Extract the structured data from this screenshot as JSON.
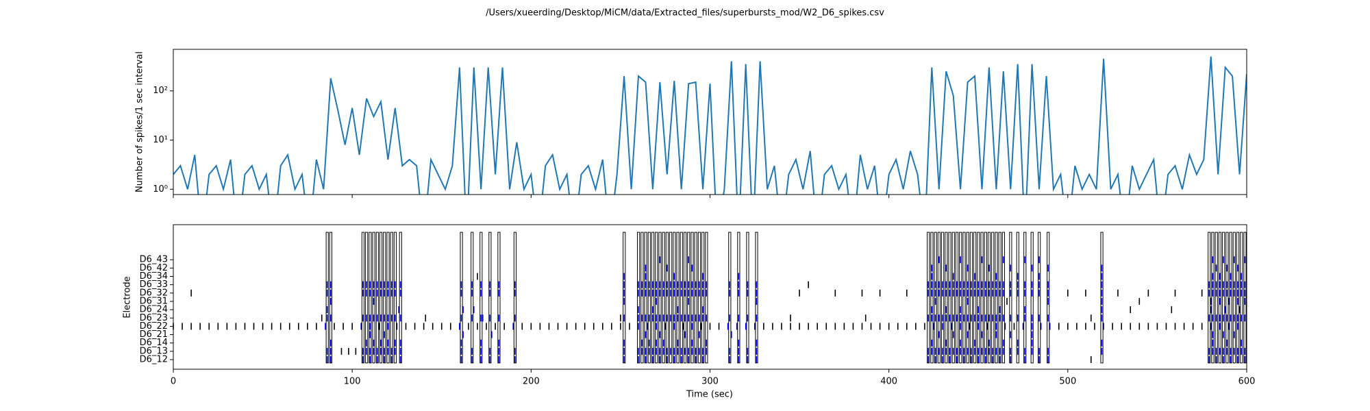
{
  "chart_data": [
    {
      "type": "line",
      "title": "/Users/xueerding/Desktop/MiCM/data/Extracted_files/superbursts_mod/W2_D6_spikes.csv",
      "y_label": "Number of spikes/1 sec interval",
      "log_y": true,
      "xlim": [
        0,
        600
      ],
      "ylim": [
        0.78,
        700
      ],
      "yticks": [
        {
          "value": 1,
          "label": "10⁰"
        },
        {
          "value": 10,
          "label": "10¹"
        },
        {
          "value": 100,
          "label": "10²"
        }
      ],
      "x": [
        0,
        4,
        8,
        12,
        16,
        20,
        24,
        28,
        32,
        36,
        40,
        44,
        48,
        52,
        56,
        60,
        64,
        68,
        72,
        76,
        80,
        84,
        88,
        92,
        96,
        100,
        104,
        108,
        112,
        116,
        120,
        124,
        128,
        132,
        136,
        140,
        144,
        148,
        152,
        156,
        160,
        164,
        168,
        172,
        176,
        180,
        184,
        188,
        192,
        196,
        200,
        204,
        208,
        212,
        216,
        220,
        224,
        228,
        232,
        236,
        240,
        244,
        248,
        252,
        256,
        260,
        264,
        268,
        272,
        276,
        280,
        284,
        288,
        292,
        296,
        300,
        304,
        308,
        312,
        316,
        320,
        324,
        328,
        332,
        336,
        340,
        344,
        348,
        352,
        356,
        360,
        364,
        368,
        372,
        376,
        380,
        384,
        388,
        392,
        396,
        400,
        404,
        408,
        412,
        416,
        420,
        424,
        428,
        432,
        436,
        440,
        444,
        448,
        452,
        456,
        460,
        464,
        468,
        472,
        476,
        480,
        484,
        488,
        492,
        496,
        500,
        504,
        508,
        512,
        516,
        520,
        524,
        528,
        532,
        536,
        540,
        544,
        548,
        552,
        556,
        560,
        564,
        568,
        572,
        576,
        580,
        584,
        588,
        592,
        596,
        600
      ],
      "series": [
        {
          "color": "#1f77b4",
          "values": [
            2,
            3,
            1,
            5,
            0,
            2,
            3,
            1,
            4,
            0,
            2,
            3,
            1,
            2,
            0,
            3,
            5,
            1,
            2,
            0,
            4,
            1,
            180,
            40,
            8,
            45,
            5,
            70,
            30,
            60,
            4,
            45,
            3,
            4,
            3,
            0,
            4,
            2,
            1,
            3,
            300,
            0,
            300,
            1,
            300,
            2,
            300,
            1,
            9,
            1,
            2,
            0,
            3,
            5,
            1,
            2,
            0,
            2,
            3,
            1,
            4,
            0,
            2,
            200,
            1,
            200,
            150,
            1,
            150,
            2,
            160,
            1,
            140,
            150,
            1,
            140,
            0,
            1,
            400,
            0,
            350,
            0,
            400,
            1,
            3,
            0,
            2,
            4,
            1,
            6,
            0,
            2,
            3,
            1,
            2,
            0,
            5,
            1,
            3,
            0,
            2,
            4,
            1,
            6,
            2,
            0,
            300,
            1,
            250,
            80,
            1,
            150,
            200,
            1,
            300,
            1,
            250,
            1,
            350,
            0,
            350,
            1,
            200,
            1,
            2,
            0,
            3,
            1,
            2,
            1,
            450,
            1,
            2,
            0,
            3,
            1,
            2,
            4,
            0,
            2,
            3,
            1,
            5,
            2,
            4,
            500,
            2,
            300,
            200,
            2,
            220
          ]
        }
      ]
    },
    {
      "type": "raster",
      "x_label": "Time (sec)",
      "y_label": "Electrode",
      "xlim": [
        0,
        600
      ],
      "xticks": [
        0,
        100,
        200,
        300,
        400,
        500,
        600
      ],
      "color": "#000000",
      "burst_color": "#0000ff",
      "categories": [
        "D6_12",
        "D6_13",
        "D6_14",
        "D6_21",
        "D6_22",
        "D6_23",
        "D6_24",
        "D6_31",
        "D6_32",
        "D6_33",
        "D6_34",
        "D6_42",
        "D6_43"
      ],
      "bursts": [
        86,
        88,
        106,
        108,
        110,
        112,
        114,
        116,
        118,
        120,
        122,
        124,
        127,
        161,
        167,
        172,
        177,
        182,
        191,
        252,
        260,
        262,
        264,
        266,
        268,
        270,
        272,
        274,
        276,
        278,
        280,
        282,
        284,
        286,
        288,
        290,
        292,
        294,
        296,
        298,
        311,
        316,
        321,
        326,
        422,
        424,
        426,
        428,
        430,
        432,
        434,
        436,
        438,
        440,
        442,
        444,
        446,
        448,
        450,
        452,
        454,
        456,
        458,
        460,
        462,
        464,
        468,
        472,
        476,
        480,
        484,
        489,
        519,
        579,
        581,
        583,
        585,
        587,
        589,
        591,
        593,
        595,
        597,
        599
      ],
      "spikes": [
        [
          86,
          88,
          106,
          110,
          114,
          118,
          122,
          127,
          161,
          167,
          172,
          177,
          182,
          191,
          252,
          260,
          264,
          268,
          272,
          276,
          280,
          284,
          288,
          292,
          296,
          311,
          316,
          321,
          326,
          422,
          426,
          430,
          434,
          438,
          442,
          446,
          450,
          454,
          458,
          462,
          468,
          476,
          484,
          489,
          513,
          579,
          583,
          587,
          591,
          595,
          599
        ],
        [
          86,
          88,
          106,
          108,
          110,
          112,
          114,
          116,
          118,
          120,
          122,
          124,
          127,
          161,
          167,
          172,
          177,
          182,
          191,
          252,
          260,
          262,
          264,
          266,
          268,
          270,
          272,
          274,
          276,
          278,
          280,
          282,
          284,
          286,
          288,
          290,
          292,
          294,
          296,
          298,
          311,
          316,
          321,
          326,
          422,
          424,
          426,
          428,
          430,
          432,
          434,
          436,
          438,
          440,
          442,
          444,
          446,
          448,
          450,
          452,
          454,
          456,
          458,
          460,
          462,
          464,
          468,
          472,
          476,
          480,
          484,
          489,
          519,
          579,
          581,
          583,
          585,
          587,
          589,
          591,
          593,
          595,
          597,
          599,
          94,
          98,
          102
        ],
        [
          88,
          108,
          112,
          116,
          120,
          124,
          127,
          161,
          172,
          182,
          252,
          262,
          266,
          270,
          274,
          282,
          290,
          298,
          316,
          326,
          424,
          432,
          440,
          448,
          456,
          464,
          472,
          480,
          519,
          581,
          589,
          597
        ],
        [
          110,
          118,
          162,
          178,
          264,
          272,
          286,
          294,
          312,
          428,
          436,
          444,
          452,
          460,
          468,
          480,
          581,
          587,
          593
        ],
        [
          0,
          5,
          10,
          15,
          20,
          25,
          30,
          35,
          40,
          45,
          50,
          55,
          60,
          65,
          70,
          75,
          80,
          85,
          90,
          95,
          100,
          105,
          110,
          115,
          120,
          125,
          130,
          135,
          140,
          145,
          150,
          155,
          160,
          165,
          170,
          175,
          180,
          185,
          190,
          195,
          200,
          205,
          210,
          215,
          220,
          225,
          230,
          235,
          240,
          245,
          250,
          255,
          260,
          265,
          270,
          275,
          280,
          285,
          290,
          295,
          300,
          305,
          310,
          315,
          320,
          325,
          330,
          335,
          340,
          345,
          350,
          355,
          360,
          365,
          370,
          375,
          380,
          385,
          390,
          395,
          400,
          405,
          410,
          415,
          420,
          425,
          430,
          435,
          440,
          445,
          450,
          455,
          460,
          465,
          470,
          475,
          480,
          485,
          490,
          495,
          500,
          505,
          510,
          515,
          520,
          525,
          530,
          535,
          540,
          545,
          550,
          555,
          560,
          565,
          570,
          575,
          580,
          585,
          590,
          595
        ],
        [
          86,
          88,
          106,
          108,
          110,
          112,
          114,
          116,
          118,
          120,
          122,
          124,
          127,
          161,
          167,
          172,
          177,
          182,
          191,
          252,
          260,
          262,
          264,
          266,
          268,
          270,
          272,
          274,
          276,
          278,
          280,
          282,
          284,
          286,
          288,
          290,
          292,
          294,
          296,
          298,
          311,
          316,
          321,
          326,
          422,
          424,
          426,
          428,
          430,
          432,
          434,
          436,
          438,
          440,
          442,
          444,
          446,
          448,
          450,
          452,
          454,
          456,
          458,
          460,
          462,
          464,
          468,
          472,
          476,
          480,
          484,
          489,
          519,
          579,
          581,
          583,
          585,
          587,
          589,
          591,
          593,
          595,
          597,
          599,
          83,
          141,
          173,
          250,
          345,
          387,
          513
        ],
        [
          86,
          126,
          162,
          168,
          260,
          268,
          282,
          296,
          424,
          432,
          440,
          450,
          462,
          476,
          519,
          535,
          558,
          580,
          588,
          596
        ],
        [
          88,
          112,
          252,
          270,
          288,
          326,
          426,
          444,
          466,
          489,
          519,
          540,
          580,
          585,
          590,
          595,
          599
        ],
        [
          86,
          88,
          106,
          108,
          110,
          112,
          114,
          116,
          118,
          120,
          122,
          124,
          127,
          161,
          167,
          172,
          177,
          182,
          191,
          252,
          260,
          262,
          264,
          266,
          268,
          270,
          272,
          274,
          276,
          278,
          280,
          282,
          284,
          286,
          288,
          290,
          292,
          294,
          296,
          298,
          311,
          316,
          321,
          326,
          422,
          424,
          426,
          428,
          430,
          432,
          434,
          436,
          438,
          440,
          442,
          444,
          446,
          448,
          450,
          452,
          454,
          456,
          458,
          460,
          462,
          464,
          468,
          472,
          476,
          480,
          484,
          489,
          519,
          579,
          581,
          583,
          585,
          587,
          589,
          591,
          593,
          595,
          597,
          599,
          10,
          350,
          370,
          385,
          395,
          410,
          500,
          510,
          528,
          545,
          560,
          575
        ],
        [
          86,
          88,
          106,
          108,
          110,
          112,
          114,
          116,
          118,
          120,
          122,
          124,
          127,
          161,
          167,
          172,
          177,
          182,
          191,
          252,
          260,
          262,
          264,
          266,
          268,
          270,
          272,
          274,
          276,
          278,
          280,
          282,
          284,
          286,
          288,
          290,
          292,
          294,
          296,
          298,
          311,
          316,
          321,
          326,
          422,
          424,
          426,
          428,
          430,
          432,
          434,
          436,
          438,
          440,
          442,
          444,
          446,
          448,
          450,
          452,
          454,
          456,
          458,
          460,
          462,
          464,
          468,
          472,
          476,
          480,
          484,
          489,
          519,
          579,
          581,
          583,
          585,
          587,
          589,
          591,
          593,
          595,
          597,
          599,
          355
        ],
        [
          170,
          252,
          264,
          280,
          296,
          316,
          424,
          436,
          448,
          460,
          472,
          484,
          519,
          581,
          585,
          591,
          597
        ],
        [
          264,
          276,
          290,
          424,
          432,
          444,
          456,
          468,
          480,
          489,
          519,
          583,
          589,
          595
        ],
        [
          272,
          288,
          428,
          440,
          452,
          464,
          476,
          484,
          581,
          587,
          593,
          599
        ]
      ]
    }
  ]
}
